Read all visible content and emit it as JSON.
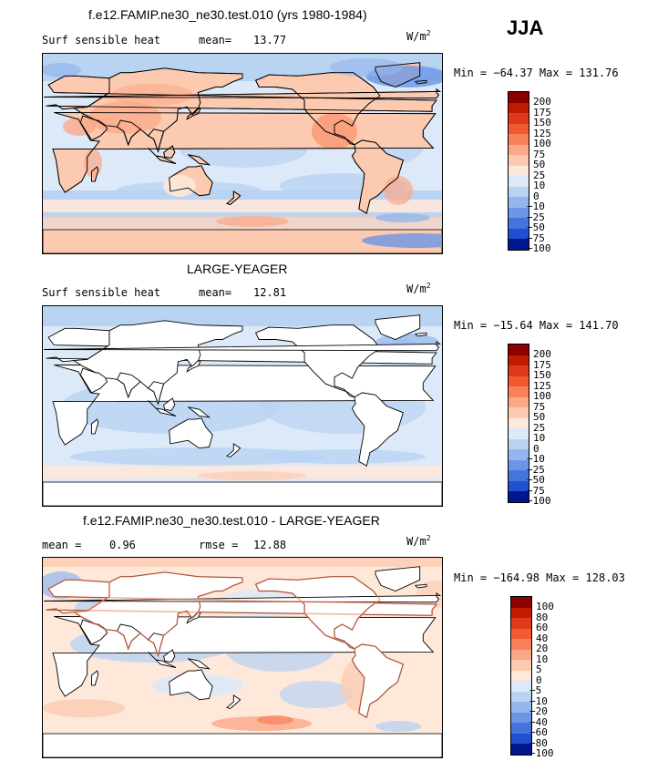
{
  "season": "JJA",
  "units": {
    "base": "W/m",
    "exp": "2"
  },
  "panels": [
    {
      "title": "f.e12.FAMIP.ne30_ne30.test.010 (yrs 1980-1984)",
      "left_label": "Surf sensible heat",
      "stat_label": "mean=",
      "stat_value": "13.77",
      "minmax": "Min = −64.37 Max = 131.76"
    },
    {
      "title": "LARGE-YEAGER",
      "left_label": "Surf sensible heat",
      "stat_label": "mean=",
      "stat_value": "12.81",
      "minmax": "Min = −15.64 Max = 141.70"
    },
    {
      "title": "f.e12.FAMIP.ne30_ne30.test.010 - LARGE-YEAGER",
      "left_label": "mean =",
      "left_value": "0.96",
      "stat_label": "rmse =",
      "stat_value": "12.88",
      "minmax": "Min = −164.98 Max = 128.03"
    }
  ],
  "chart_data": [
    {
      "type": "heatmap",
      "title": "f.e12.FAMIP.ne30_ne30.test.010 (yrs 1980-1984)",
      "variable": "Surf sensible heat",
      "units": "W/m2",
      "mean": 13.77,
      "min": -64.37,
      "max": 131.76,
      "colorbar_levels": [
        "200",
        "175",
        "150",
        "125",
        "100",
        "75",
        "50",
        "25",
        "10",
        "0",
        "−10",
        "−25",
        "−50",
        "−75",
        "−100"
      ],
      "colorbar_colors": [
        "#8b0000",
        "#c01a00",
        "#e0381a",
        "#f05a30",
        "#f8805a",
        "#fba888",
        "#fccab0",
        "#fde8da",
        "#dce9f8",
        "#b9d3f2",
        "#93b6ec",
        "#6c95e6",
        "#4474de",
        "#2050d0",
        "#00168c"
      ]
    },
    {
      "type": "heatmap",
      "title": "LARGE-YEAGER",
      "variable": "Surf sensible heat",
      "units": "W/m2",
      "mean": 12.81,
      "min": -15.64,
      "max": 141.7,
      "colorbar_levels": [
        "200",
        "175",
        "150",
        "125",
        "100",
        "75",
        "50",
        "25",
        "10",
        "0",
        "−10",
        "−25",
        "−50",
        "−75",
        "−100"
      ],
      "colorbar_colors": [
        "#8b0000",
        "#c01a00",
        "#e0381a",
        "#f05a30",
        "#f8805a",
        "#fba888",
        "#fccab0",
        "#fde8da",
        "#dce9f8",
        "#b9d3f2",
        "#93b6ec",
        "#6c95e6",
        "#4474de",
        "#2050d0",
        "#00168c"
      ]
    },
    {
      "type": "heatmap",
      "title": "f.e12.FAMIP.ne30_ne30.test.010 - LARGE-YEAGER",
      "units": "W/m2",
      "mean": 0.96,
      "rmse": 12.88,
      "min": -164.98,
      "max": 128.03,
      "colorbar_levels": [
        "100",
        "80",
        "60",
        "40",
        "20",
        "10",
        "5",
        "0",
        "−5",
        "−10",
        "−20",
        "−40",
        "−60",
        "−80",
        "−100"
      ],
      "colorbar_colors": [
        "#8b0000",
        "#c01a00",
        "#e0381a",
        "#f05a30",
        "#f8805a",
        "#fba888",
        "#fccab0",
        "#fde8da",
        "#dce9f8",
        "#b9d3f2",
        "#93b6ec",
        "#6c95e6",
        "#4474de",
        "#2050d0",
        "#00168c"
      ]
    }
  ]
}
